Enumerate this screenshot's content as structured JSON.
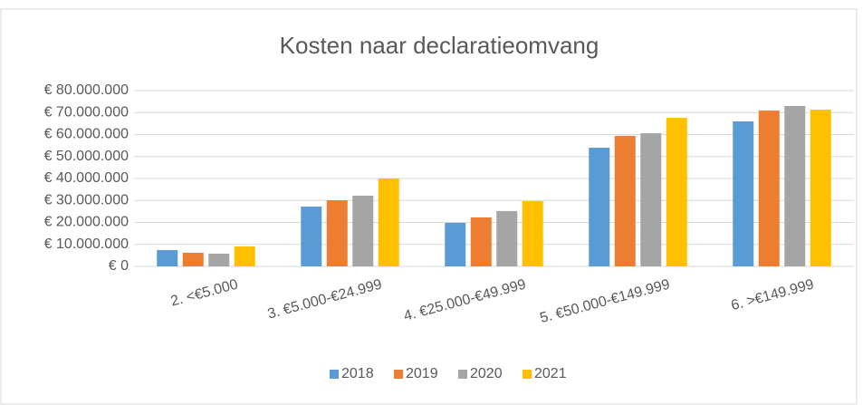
{
  "chart_data": {
    "type": "bar",
    "title": "Kosten naar declaratieomvang",
    "categories": [
      "2. <€5.000",
      "3. €5.000-€24.999",
      "4. €25.000-€49.999",
      "5. €50.000-€149.999",
      "6. >€149.999"
    ],
    "series": [
      {
        "name": "2018",
        "color": "#5b9bd5",
        "values": [
          7400000,
          27200000,
          19800000,
          54000000,
          66000000
        ]
      },
      {
        "name": "2019",
        "color": "#ed7d31",
        "values": [
          6200000,
          30100000,
          22300000,
          59400000,
          70900000
        ]
      },
      {
        "name": "2020",
        "color": "#a5a5a5",
        "values": [
          5800000,
          32200000,
          25200000,
          60600000,
          73000000
        ]
      },
      {
        "name": "2021",
        "color": "#ffc000",
        "values": [
          9100000,
          40000000,
          29700000,
          67600000,
          71300000
        ]
      }
    ],
    "ylim": [
      0,
      80000000
    ],
    "yticks": [
      {
        "value": 0,
        "label": "€ 0"
      },
      {
        "value": 10000000,
        "label": "€ 10.000.000"
      },
      {
        "value": 20000000,
        "label": "€ 20.000.000"
      },
      {
        "value": 30000000,
        "label": "€ 30.000.000"
      },
      {
        "value": 40000000,
        "label": "€ 40.000.000"
      },
      {
        "value": 50000000,
        "label": "€ 50.000.000"
      },
      {
        "value": 60000000,
        "label": "€ 60.000.000"
      },
      {
        "value": 70000000,
        "label": "€ 70.000.000"
      },
      {
        "value": 80000000,
        "label": "€ 80.000.000"
      }
    ],
    "grid": true,
    "legend": "bottom"
  }
}
